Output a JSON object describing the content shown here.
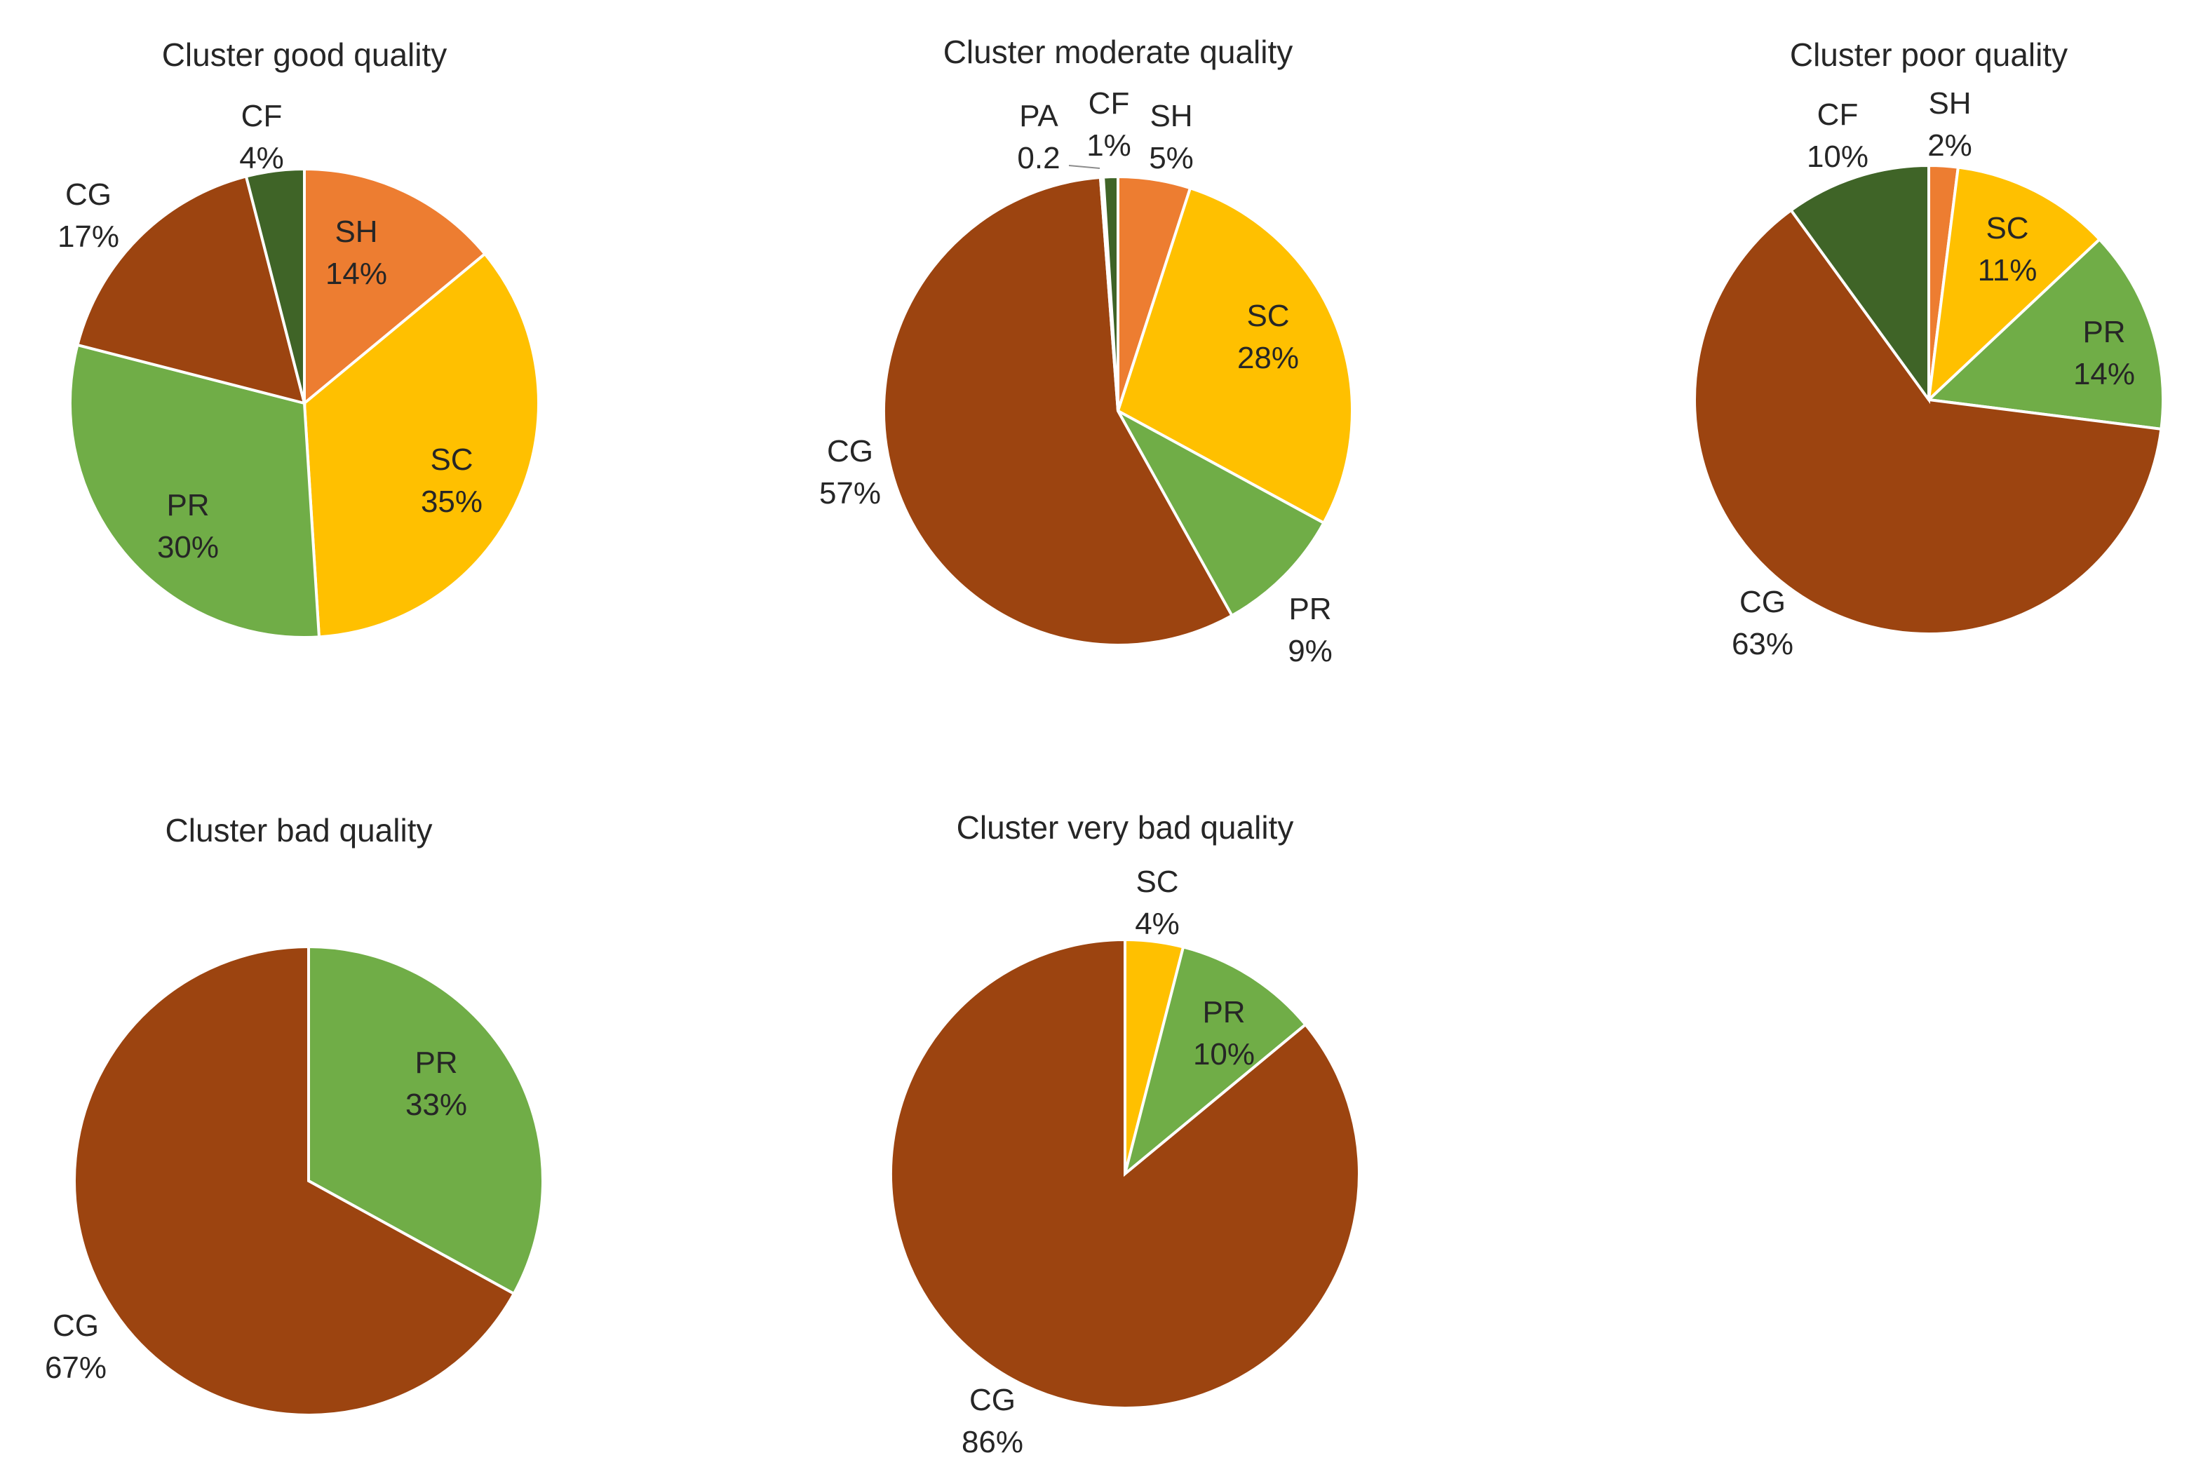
{
  "palette": {
    "SH": "#ed7d31",
    "SC": "#ffc000",
    "PR": "#70ad47",
    "CG": "#9c4410",
    "CF": "#3f6427",
    "PA": "#c8c8c8"
  },
  "chart_data": [
    {
      "type": "pie",
      "title": "Cluster good quality",
      "slices": [
        {
          "category": "SH",
          "value": 14,
          "label": "14%"
        },
        {
          "category": "SC",
          "value": 35,
          "label": "35%"
        },
        {
          "category": "PR",
          "value": 30,
          "label": "30%"
        },
        {
          "category": "CG",
          "value": 17,
          "label": "17%"
        },
        {
          "category": "CF",
          "value": 4,
          "label": "4%"
        }
      ]
    },
    {
      "type": "pie",
      "title": "Cluster moderate quality",
      "slices": [
        {
          "category": "SH",
          "value": 5,
          "label": "5%"
        },
        {
          "category": "SC",
          "value": 28,
          "label": "28%"
        },
        {
          "category": "PR",
          "value": 9,
          "label": "9%"
        },
        {
          "category": "CG",
          "value": 57,
          "label": "57%"
        },
        {
          "category": "PA",
          "value": 0.2,
          "label": "0.2"
        },
        {
          "category": "CF",
          "value": 1,
          "label": "1%"
        }
      ]
    },
    {
      "type": "pie",
      "title": "Cluster poor quality",
      "slices": [
        {
          "category": "SH",
          "value": 2,
          "label": "2%"
        },
        {
          "category": "SC",
          "value": 11,
          "label": "11%"
        },
        {
          "category": "PR",
          "value": 14,
          "label": "14%"
        },
        {
          "category": "CG",
          "value": 63,
          "label": "63%"
        },
        {
          "category": "CF",
          "value": 10,
          "label": "10%"
        }
      ]
    },
    {
      "type": "pie",
      "title": "Cluster bad quality",
      "slices": [
        {
          "category": "PR",
          "value": 33,
          "label": "33%"
        },
        {
          "category": "CG",
          "value": 67,
          "label": "67%"
        }
      ]
    },
    {
      "type": "pie",
      "title": "Cluster very bad quality",
      "slices": [
        {
          "category": "SC",
          "value": 4,
          "label": "4%"
        },
        {
          "category": "PR",
          "value": 10,
          "label": "10%"
        },
        {
          "category": "CG",
          "value": 86,
          "label": "86%"
        }
      ]
    }
  ]
}
